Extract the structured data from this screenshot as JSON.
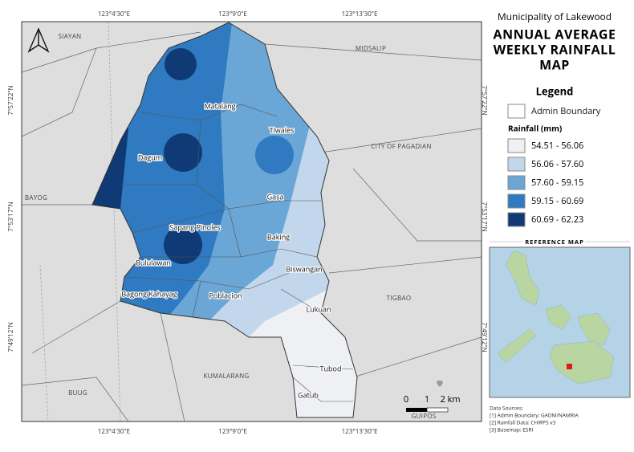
{
  "grid": {
    "lon_labels": [
      "123°4'30\"E",
      "123°9'0\"E",
      "123°13'30\"E"
    ],
    "lat_labels": [
      "7°57'22\"N",
      "7°53'17\"N",
      "7°49'12\"N"
    ]
  },
  "places": [
    "SIAYAN",
    "MIDSALIP",
    "CITY OF PAGADIAN",
    "BAYOG",
    "TIGBAO",
    "KUMALARANG",
    "BUUG",
    "GUIPOS"
  ],
  "barangays": [
    "Matalang",
    "Tiwales",
    "Dagum",
    "Gasa",
    "Sapang Pinoles",
    "Baking",
    "Bululawan",
    "Biswangan",
    "Bagong Kahayag",
    "Poblacion",
    "Lukuan",
    "Tubod",
    "Gatub"
  ],
  "scale": {
    "ticks": [
      "0",
      "1",
      "2 km"
    ]
  },
  "panel": {
    "municipality": "Municipality of Lakewood",
    "title": [
      "ANNUAL AVERAGE",
      "WEEKLY RAINFALL",
      "MAP"
    ],
    "legend_title": "Legend",
    "admin_boundary": "Admin Boundary",
    "rainfall_title": "Rainfall (mm)",
    "classes": [
      "54.51 - 56.06",
      "56.06 - 57.60",
      "57.60 - 59.15",
      "59.15 - 60.69",
      "60.69 - 62.23"
    ],
    "reference_title": "REFERENCE MAP",
    "sources": [
      "Data Sources:",
      "[1] Admin Boundary: GADM/NAMRIA",
      "[2] Rainfall Data: CHIRPS v3",
      "[3] Basemap: ESRI"
    ]
  }
}
